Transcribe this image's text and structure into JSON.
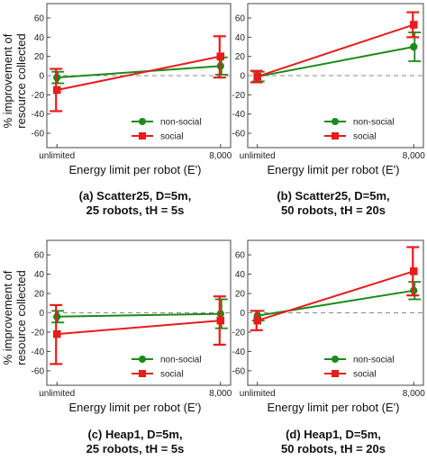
{
  "figure": {
    "ylabel_line1": "% improvement of",
    "ylabel_line2": "resource collected",
    "xlabel": "Energy limit per robot (E')"
  },
  "colors": {
    "non_social": "#1a8a1a",
    "social": "#e81c1c",
    "zero_line": "#888888"
  },
  "chart_data": [
    {
      "type": "line",
      "panel": "a",
      "caption_line1": "(a) Scatter25, D=5m,",
      "caption_line2": "25 robots, tH = 5s",
      "categories": [
        "unlimited",
        "8,000"
      ],
      "ylim": [
        -75,
        75
      ],
      "yticks": [
        -60,
        -40,
        -20,
        0,
        20,
        40,
        60
      ],
      "grid": false,
      "legend": "bottom-right",
      "series": [
        {
          "name": "non-social",
          "values": [
            -2,
            10
          ],
          "err_low": [
            -8,
            1
          ],
          "err_high": [
            4,
            19
          ]
        },
        {
          "name": "social",
          "values": [
            -15,
            20
          ],
          "err_low": [
            -37,
            -2
          ],
          "err_high": [
            7,
            41
          ]
        }
      ]
    },
    {
      "type": "line",
      "panel": "b",
      "caption_line1": "(b) Scatter25, D=5m,",
      "caption_line2": "50 robots, tH = 20s",
      "categories": [
        "unlimited",
        "8,000"
      ],
      "ylim": [
        -75,
        75
      ],
      "yticks": [
        -60,
        -40,
        -20,
        0,
        20,
        40,
        60
      ],
      "grid": false,
      "legend": "bottom-right",
      "series": [
        {
          "name": "non-social",
          "values": [
            -1,
            30
          ],
          "err_low": [
            -6,
            15
          ],
          "err_high": [
            4,
            45
          ]
        },
        {
          "name": "social",
          "values": [
            -1,
            53
          ],
          "err_low": [
            -7,
            40
          ],
          "err_high": [
            5,
            66
          ]
        }
      ]
    },
    {
      "type": "line",
      "panel": "c",
      "caption_line1": "(c) Heap1, D=5m,",
      "caption_line2": "25 robots, tH = 5s",
      "categories": [
        "unlimited",
        "8,000"
      ],
      "ylim": [
        -75,
        75
      ],
      "yticks": [
        -60,
        -40,
        -20,
        0,
        20,
        40,
        60
      ],
      "grid": false,
      "legend": "bottom-right",
      "series": [
        {
          "name": "non-social",
          "values": [
            -4,
            -1
          ],
          "err_low": [
            -10,
            -16
          ],
          "err_high": [
            2,
            14
          ]
        },
        {
          "name": "social",
          "values": [
            -22,
            -8
          ],
          "err_low": [
            -53,
            -33
          ],
          "err_high": [
            8,
            17
          ]
        }
      ]
    },
    {
      "type": "line",
      "panel": "d",
      "caption_line1": "(d) Heap1, D=5m,",
      "caption_line2": "50 robots, tH = 20s",
      "categories": [
        "unlimited",
        "8,000"
      ],
      "ylim": [
        -75,
        75
      ],
      "yticks": [
        -60,
        -40,
        -20,
        0,
        20,
        40,
        60
      ],
      "grid": false,
      "legend": "bottom-right",
      "series": [
        {
          "name": "non-social",
          "values": [
            -3,
            23
          ],
          "err_low": [
            -8,
            14
          ],
          "err_high": [
            2,
            32
          ]
        },
        {
          "name": "social",
          "values": [
            -8,
            43
          ],
          "err_low": [
            -18,
            18
          ],
          "err_high": [
            2,
            68
          ]
        }
      ]
    }
  ]
}
